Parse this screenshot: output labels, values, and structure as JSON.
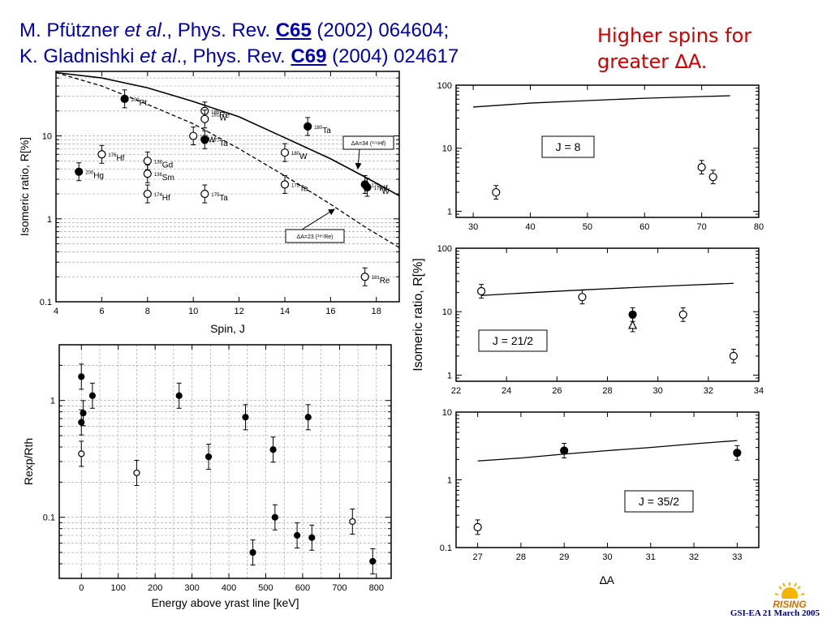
{
  "header": {
    "ref1_prefix": "M. Pfützner ",
    "ref1_etal": "et al",
    "ref1_journal": "., Phys. Rev. ",
    "ref1_vol": "C65",
    "ref1_rest": " (2002) 064604;",
    "ref2_prefix": "K. Gladnishki ",
    "ref2_etal": "et al",
    "ref2_journal": "., Phys. Rev. ",
    "ref2_vol": "C69",
    "ref2_rest": " (2004) 024617"
  },
  "note": {
    "line1": "Higher spins for",
    "line2": "greater ∆A."
  },
  "footer": {
    "text": "GSI-EA 21 March 2005",
    "logo_text": "RISING"
  },
  "colors": {
    "title": "#0000b4",
    "note": "#d00000",
    "footer": "#000080",
    "logo": "#d07000"
  },
  "chart_data": [
    {
      "type": "scatter",
      "xlabel": "Spin, J",
      "ylabel": "Isomeric ratio, R[%]",
      "xlim": [
        4,
        19
      ],
      "ylim": [
        0.1,
        60
      ],
      "yscale": "log",
      "xticks": [
        "4",
        "6",
        "8",
        "10",
        "12",
        "14",
        "16",
        "18"
      ],
      "yticks": [
        "0.1",
        "1",
        "10"
      ],
      "points": [
        {
          "x": 5,
          "y": 3.7,
          "filled": true,
          "label": "Hg",
          "mass": "200"
        },
        {
          "x": 6,
          "y": 6,
          "filled": false,
          "label": "Hf",
          "mass": "176"
        },
        {
          "x": 7,
          "y": 28,
          "filled": true,
          "label": "Pt",
          "mass": "200"
        },
        {
          "x": 8,
          "y": 5,
          "filled": false,
          "label": "Gd",
          "mass": "138"
        },
        {
          "x": 8,
          "y": 3.5,
          "filled": false,
          "label": "Sm",
          "mass": "136"
        },
        {
          "x": 8,
          "y": 2.0,
          "filled": false,
          "label": "Hf",
          "mass": "174"
        },
        {
          "x": 10,
          "y": 10,
          "filled": false,
          "label": "W",
          "mass": "182"
        },
        {
          "x": 10.5,
          "y": 9,
          "filled": true,
          "label": "Ta",
          "mass": "177"
        },
        {
          "x": 10.5,
          "y": 20,
          "filled": false,
          "label": "Re",
          "mass": "185"
        },
        {
          "x": 10.5,
          "y": 16,
          "filled": false,
          "label": "W",
          "mass": "181"
        },
        {
          "x": 10.5,
          "y": 2.0,
          "filled": false,
          "label": "Ta",
          "mass": "175"
        },
        {
          "x": 14,
          "y": 6.3,
          "filled": false,
          "label": "W",
          "mass": "180"
        },
        {
          "x": 14,
          "y": 2.6,
          "filled": false,
          "label": "Ta",
          "mass": "175"
        },
        {
          "x": 15,
          "y": 13,
          "filled": true,
          "label": "Ta",
          "mass": "180"
        },
        {
          "x": 17.5,
          "y": 2.6,
          "filled": true,
          "label": "Hf",
          "mass": "175"
        },
        {
          "x": 17.6,
          "y": 2.4,
          "filled": true,
          "label": "W",
          "mass": "179"
        },
        {
          "x": 17.5,
          "y": 0.2,
          "filled": false,
          "label": "Re",
          "mass": "181"
        }
      ],
      "annotations": [
        "ΔA=34 (¹⁷⁶Hf)",
        "ΔA=23 (¹⁸⁵Re)"
      ]
    },
    {
      "type": "scatter",
      "xlabel": "Energy above yrast line [keV]",
      "ylabel": "Rexp/Rth",
      "xlim": [
        -60,
        840
      ],
      "ylim": [
        0.03,
        3
      ],
      "yscale": "log",
      "xticks": [
        "0",
        "100",
        "200",
        "300",
        "400",
        "500",
        "600",
        "700",
        "800"
      ],
      "yticks": [
        "0.1",
        "1"
      ],
      "points": [
        {
          "x": 0,
          "y": 1.6,
          "filled": true
        },
        {
          "x": 0,
          "y": 0.65,
          "filled": true
        },
        {
          "x": 5,
          "y": 0.78,
          "filled": true
        },
        {
          "x": 30,
          "y": 1.1,
          "filled": true
        },
        {
          "x": 0,
          "y": 0.35,
          "filled": false
        },
        {
          "x": 150,
          "y": 0.24,
          "filled": false
        },
        {
          "x": 265,
          "y": 1.1,
          "filled": true
        },
        {
          "x": 345,
          "y": 0.33,
          "filled": true
        },
        {
          "x": 445,
          "y": 0.72,
          "filled": true
        },
        {
          "x": 465,
          "y": 0.05,
          "filled": true
        },
        {
          "x": 520,
          "y": 0.38,
          "filled": true
        },
        {
          "x": 525,
          "y": 0.1,
          "filled": true
        },
        {
          "x": 585,
          "y": 0.07,
          "filled": true
        },
        {
          "x": 615,
          "y": 0.72,
          "filled": true
        },
        {
          "x": 625,
          "y": 0.067,
          "filled": true
        },
        {
          "x": 735,
          "y": 0.092,
          "filled": false
        },
        {
          "x": 790,
          "y": 0.042,
          "filled": true
        }
      ]
    },
    {
      "type": "scatter",
      "label": "J = 8",
      "xlim": [
        27,
        80
      ],
      "ylim": [
        0.8,
        100
      ],
      "yscale": "log",
      "xticks": [
        "30",
        "40",
        "50",
        "60",
        "70",
        "80"
      ],
      "yticks": [
        "1",
        "10",
        "100"
      ],
      "points": [
        {
          "x": 34,
          "y": 2.0,
          "filled": false
        },
        {
          "x": 70,
          "y": 5.0,
          "filled": false
        },
        {
          "x": 72,
          "y": 3.5,
          "filled": false
        }
      ],
      "curve": [
        [
          30,
          45
        ],
        [
          40,
          52
        ],
        [
          50,
          57
        ],
        [
          60,
          62
        ],
        [
          70,
          66
        ],
        [
          75,
          68
        ]
      ]
    },
    {
      "type": "scatter",
      "label": "J = 21/2",
      "ylabel": "Isomeric ratio, R[%]",
      "xlim": [
        22,
        34
      ],
      "ylim": [
        0.8,
        100
      ],
      "yscale": "log",
      "xticks": [
        "22",
        "24",
        "26",
        "28",
        "30",
        "32",
        "34"
      ],
      "yticks": [
        "1",
        "10",
        "100"
      ],
      "points": [
        {
          "x": 23,
          "y": 21,
          "filled": false
        },
        {
          "x": 27,
          "y": 17,
          "filled": false
        },
        {
          "x": 29,
          "y": 9,
          "filled": true
        },
        {
          "x": 29,
          "y": 6.2,
          "filled": false,
          "marker": "triangle"
        },
        {
          "x": 31,
          "y": 9,
          "filled": false
        },
        {
          "x": 33,
          "y": 2.0,
          "filled": false
        }
      ],
      "curve": [
        [
          23,
          18
        ],
        [
          25,
          20
        ],
        [
          27,
          22
        ],
        [
          29,
          24
        ],
        [
          31,
          26
        ],
        [
          33,
          28
        ]
      ]
    },
    {
      "type": "scatter",
      "label": "J = 35/2",
      "xlabel": "∆A",
      "xlim": [
        26.5,
        33.5
      ],
      "ylim": [
        0.1,
        10
      ],
      "yscale": "log",
      "xticks": [
        "27",
        "28",
        "29",
        "30",
        "31",
        "32",
        "33"
      ],
      "yticks": [
        "0.1",
        "1",
        "10"
      ],
      "points": [
        {
          "x": 27,
          "y": 0.2,
          "filled": false
        },
        {
          "x": 29,
          "y": 2.7,
          "filled": true
        },
        {
          "x": 33,
          "y": 2.5,
          "filled": true
        }
      ],
      "curve": [
        [
          27,
          1.9
        ],
        [
          28,
          2.1
        ],
        [
          29,
          2.4
        ],
        [
          30,
          2.7
        ],
        [
          31,
          3.0
        ],
        [
          32,
          3.4
        ],
        [
          33,
          3.8
        ]
      ]
    }
  ]
}
